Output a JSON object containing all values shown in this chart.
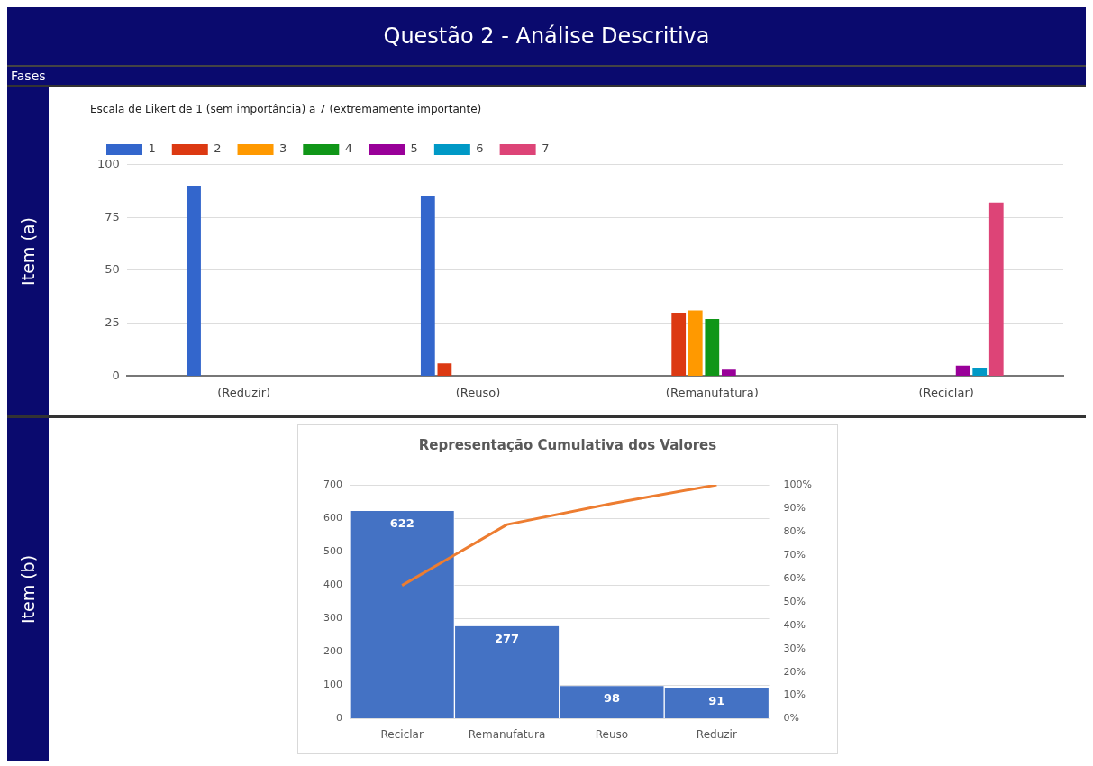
{
  "chart_data": [
    {
      "type": "bar",
      "title": "Questão 2 - Análise Descritiva",
      "subtitle": "Escala de Likert de 1 (sem importância) a 7 (extremamente importante)",
      "annotations": [
        "Fases",
        "Item (a)"
      ],
      "categories": [
        "(Reduzir)",
        "(Reuso)",
        "(Remanufatura)",
        "(Reciclar)"
      ],
      "series": [
        {
          "name": "1",
          "color": "#3366cc",
          "values": [
            90,
            85,
            0,
            0
          ]
        },
        {
          "name": "2",
          "color": "#dc3912",
          "values": [
            0,
            6,
            30,
            0
          ]
        },
        {
          "name": "3",
          "color": "#ff9900",
          "values": [
            0,
            0,
            31,
            0
          ]
        },
        {
          "name": "4",
          "color": "#109618",
          "values": [
            0,
            0,
            27,
            0
          ]
        },
        {
          "name": "5",
          "color": "#990099",
          "values": [
            0,
            0,
            3,
            5
          ]
        },
        {
          "name": "6",
          "color": "#0099c6",
          "values": [
            0,
            0,
            0,
            4
          ]
        },
        {
          "name": "7",
          "color": "#dd4477",
          "values": [
            0,
            0,
            0,
            82
          ]
        }
      ],
      "ylim": [
        0,
        100
      ],
      "yticks": [
        0,
        25,
        50,
        75,
        100
      ],
      "grid": "y",
      "legend": "top left"
    },
    {
      "type": "bar",
      "title": "Representação Cumulativa dos Valores",
      "annotations": [
        "Item (b)"
      ],
      "categories": [
        "Reciclar",
        "Remanufatura",
        "Reuso",
        "Reduzir"
      ],
      "series": [
        {
          "color": "#4472c4",
          "values": [
            622,
            277,
            98,
            91
          ],
          "value_labels": [
            "622",
            "277",
            "98",
            "91"
          ]
        },
        {
          "type": "line",
          "axis": "y2",
          "color": "#ed7d31",
          "values": [
            57,
            83,
            92,
            100
          ],
          "marker": "none"
        }
      ],
      "ylim": [
        0,
        700
      ],
      "yticks": [
        0,
        100,
        200,
        300,
        400,
        500,
        600,
        700
      ],
      "y2lim": [
        0,
        100
      ],
      "y2ticks": [
        {
          "value": 0,
          "label": "0%"
        },
        {
          "value": 10,
          "label": "10%"
        },
        {
          "value": 20,
          "label": "20%"
        },
        {
          "value": 30,
          "label": "30%"
        },
        {
          "value": 40,
          "label": "40%"
        },
        {
          "value": 50,
          "label": "50%"
        },
        {
          "value": 60,
          "label": "60%"
        },
        {
          "value": 70,
          "label": "70%"
        },
        {
          "value": 80,
          "label": "80%"
        },
        {
          "value": 90,
          "label": "90%"
        },
        {
          "value": 100,
          "label": "100%"
        }
      ],
      "grid": "y",
      "legend": false
    }
  ]
}
